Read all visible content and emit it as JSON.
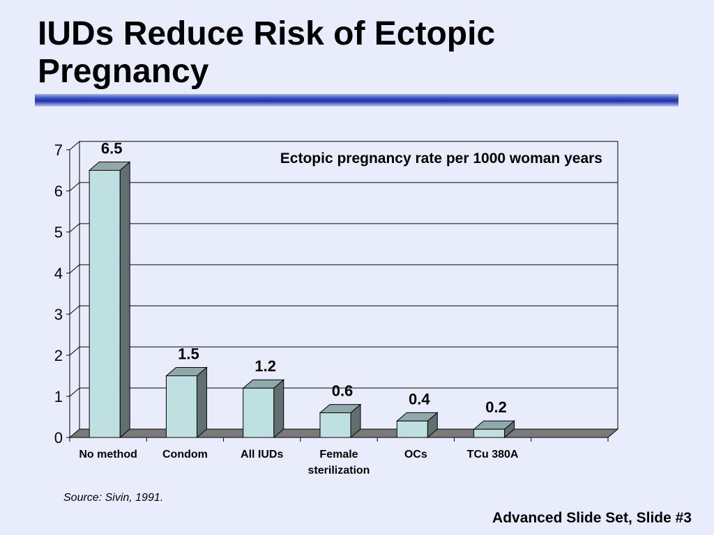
{
  "slide": {
    "title_line1": "IUDs Reduce Risk of Ectopic",
    "title_line2": "Pregnancy",
    "source": "Source: Sivin, 1991.",
    "footer": "Advanced Slide Set, Slide #3"
  },
  "colors": {
    "background": "#e8ecfb",
    "bar_front": "#bfe0e0",
    "bar_side": "#607070",
    "bar_top": "#8fa8a8",
    "floor": "#7a7a7a",
    "grid": "#000000",
    "title_rule": "#1d2fa6"
  },
  "chart_data": {
    "type": "bar",
    "title": "Ectopic pregnancy rate per 1000 woman years",
    "categories": [
      [
        "No method"
      ],
      [
        "Condom"
      ],
      [
        "All IUDs"
      ],
      [
        "Female",
        "sterilization"
      ],
      [
        "OCs"
      ],
      [
        "TCu 380A"
      ]
    ],
    "values": [
      6.5,
      1.5,
      1.2,
      0.6,
      0.4,
      0.2
    ],
    "value_labels": [
      "6.5",
      "1.5",
      "1.2",
      "0.6",
      "0.4",
      "0.2"
    ],
    "yticks": [
      "0",
      "1",
      "2",
      "3",
      "4",
      "5",
      "6",
      "7"
    ],
    "ylim": [
      0,
      7
    ],
    "grid": true,
    "style": "3d"
  }
}
